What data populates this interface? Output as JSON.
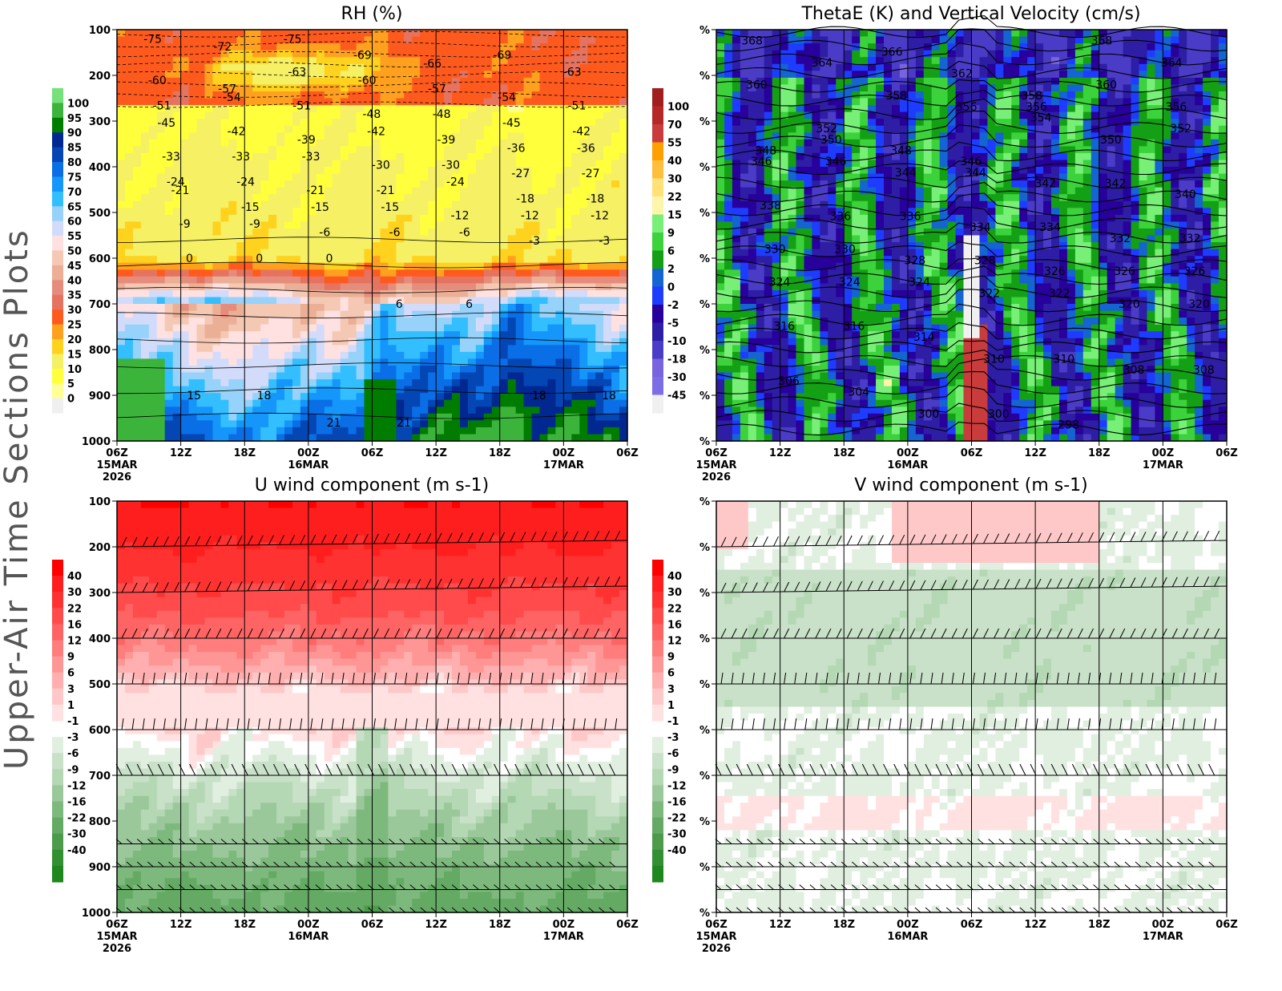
{
  "side_title": "Upper-Air Time Sections Plots",
  "x_ticks": [
    "06Z",
    "12Z",
    "18Z",
    "00Z",
    "06Z",
    "12Z",
    "18Z",
    "00Z",
    "06Z"
  ],
  "x_dates": {
    "0": "15MAR",
    "3": "16MAR",
    "7": "17MAR"
  },
  "x_year": "2026",
  "y_ticks": [
    "100",
    "200",
    "300",
    "400",
    "500",
    "600",
    "700",
    "800",
    "900",
    "1000"
  ],
  "y_tick_percent": "%",
  "chart_data": [
    {
      "type": "heatmap",
      "title": "RH (%)",
      "y_axis": "pressure (hPa), 100 top to 1000 bottom",
      "colorbar": {
        "labels": [
          "100",
          "95",
          "90",
          "85",
          "80",
          "75",
          "70",
          "65",
          "60",
          "55",
          "50",
          "45",
          "40",
          "35",
          "30",
          "25",
          "20",
          "15",
          "10",
          "5",
          "0"
        ],
        "colors": [
          "#76e07a",
          "#3cb43c",
          "#007d00",
          "#002890",
          "#0446b4",
          "#0a6ee6",
          "#1496fa",
          "#32beff",
          "#96d2fa",
          "#d2dcfa",
          "#ffe1e1",
          "#f5c8b4",
          "#ebaf96",
          "#e68c7d",
          "#e6735f",
          "#ff5a1e",
          "#ffa01e",
          "#ffd21e",
          "#f5f064",
          "#ffff3c",
          "#ffff96",
          "#f0f0f0"
        ]
      },
      "contour_labels": [
        "-75",
        "-72",
        "-75",
        "-69",
        "-66",
        "-69",
        "-63",
        "-60",
        "-57",
        "-63",
        "-60",
        "-57",
        "-54",
        "-51",
        "-51",
        "-54",
        "-51",
        "-48",
        "-48",
        "-45",
        "-42",
        "-45",
        "-42",
        "-39",
        "-42",
        "-39",
        "-36",
        "-36",
        "-33",
        "-33",
        "-33",
        "-30",
        "-30",
        "-27",
        "-27",
        "-24",
        "-24",
        "-21",
        "-21",
        "-24",
        "-18",
        "-18",
        "-21",
        "-15",
        "-15",
        "-15",
        "-12",
        "-12",
        "-12",
        "-9",
        "-9",
        "-6",
        "-6",
        "-6",
        "-3",
        "-3",
        "0",
        "0",
        "0",
        "6",
        "6",
        "18",
        "18",
        "15",
        "18",
        "21",
        "21"
      ]
    },
    {
      "type": "heatmap",
      "title": "ThetaE (K) and Vertical Velocity (cm/s)",
      "colorbar": {
        "labels": [
          "100",
          "70",
          "55",
          "40",
          "30",
          "22",
          "15",
          "9",
          "6",
          "2",
          "0",
          "-2",
          "-5",
          "-10",
          "-18",
          "-30",
          "-45"
        ],
        "colors": [
          "#a01e1e",
          "#b42828",
          "#c83c3c",
          "#ffa000",
          "#ffbe3c",
          "#ffe178",
          "#fff5aa",
          "#78f078",
          "#3cd23c",
          "#14a014",
          "#1464d2",
          "#1e3cff",
          "#28009b",
          "#2d1ea5",
          "#4b3cc8",
          "#7864dc",
          "#7d6ee6",
          "#f0f0f0"
        ]
      },
      "contour_labels": [
        "368",
        "364",
        "366",
        "362",
        "358",
        "368",
        "364",
        "360",
        "352",
        "358",
        "356",
        "356",
        "360",
        "356",
        "346",
        "350",
        "348",
        "346",
        "354",
        "350",
        "352",
        "348",
        "346",
        "344",
        "344",
        "342",
        "342",
        "340",
        "338",
        "336",
        "336",
        "334",
        "334",
        "332",
        "332",
        "330",
        "330",
        "328",
        "328",
        "326",
        "326",
        "326",
        "324",
        "324",
        "324",
        "322",
        "322",
        "320",
        "320",
        "316",
        "316",
        "314",
        "310",
        "310",
        "308",
        "308",
        "306",
        "304",
        "300",
        "300",
        "298"
      ]
    },
    {
      "type": "heatmap",
      "title": "U wind component (m s-1)",
      "colorbar": {
        "labels": [
          "40",
          "30",
          "22",
          "16",
          "12",
          "9",
          "6",
          "3",
          "1",
          "-1",
          "-3",
          "-6",
          "-9",
          "-12",
          "-16",
          "-22",
          "-30",
          "-40"
        ],
        "colors": [
          "#ff0000",
          "#ff1e1e",
          "#ff3232",
          "#ff4b4b",
          "#ff6464",
          "#ff7d7d",
          "#ff9696",
          "#ffafaf",
          "#ffc8c8",
          "#ffe1e1",
          "#ffffff",
          "#e1efe1",
          "#c8e1c8",
          "#b4d7b4",
          "#9bc89b",
          "#7db97d",
          "#64aa64",
          "#4b9b4b",
          "#329032",
          "#1e871e"
        ]
      },
      "barb_levels": [
        "200",
        "300",
        "400",
        "500",
        "600",
        "700",
        "850",
        "900",
        "950",
        "1000"
      ]
    },
    {
      "type": "heatmap",
      "title": "V wind component (m s-1)",
      "colorbar": {
        "labels": [
          "40",
          "30",
          "22",
          "16",
          "12",
          "9",
          "6",
          "3",
          "1",
          "-1",
          "-3",
          "-6",
          "-9",
          "-12",
          "-16",
          "-22",
          "-30",
          "-40"
        ],
        "colors": [
          "#ff0000",
          "#ff1e1e",
          "#ff3232",
          "#ff4b4b",
          "#ff6464",
          "#ff7d7d",
          "#ff9696",
          "#ffafaf",
          "#ffc8c8",
          "#ffe1e1",
          "#ffffff",
          "#e1efe1",
          "#c8e1c8",
          "#b4d7b4",
          "#9bc89b",
          "#7db97d",
          "#64aa64",
          "#4b9b4b",
          "#329032",
          "#1e871e"
        ]
      },
      "barb_levels": [
        "200",
        "300",
        "400",
        "500",
        "600",
        "700",
        "850",
        "900",
        "950",
        "1000"
      ]
    }
  ]
}
